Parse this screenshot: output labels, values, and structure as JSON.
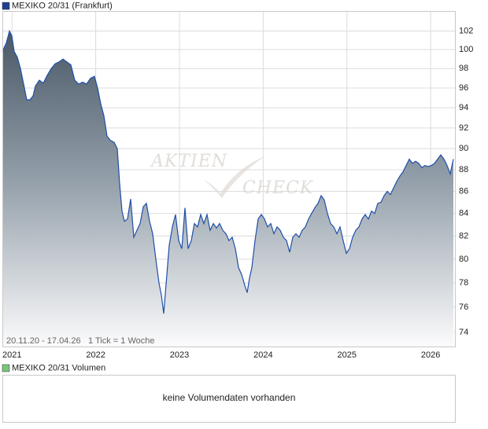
{
  "chart_data": {
    "type": "area",
    "title": "MEXIKO 20/31 (Frankfurt)",
    "color": "#1f4fa8",
    "log": true,
    "grid": true,
    "date_range": "20.11.20 - 17.04.26",
    "tick_note": "1 Tick = 1 Woche",
    "watermark": [
      "AKTIEN",
      "CHECK"
    ],
    "xlim": [
      2020.885,
      2026.29
    ],
    "xticks": [
      2021,
      2022,
      2023,
      2024,
      2025,
      2026
    ],
    "ylim": [
      72.9,
      104.2
    ],
    "yticks": [
      74,
      76,
      78,
      80,
      82,
      84,
      86,
      88,
      90,
      92,
      94,
      96,
      98,
      100,
      102
    ],
    "x": [
      2020.885,
      2020.932,
      2020.97,
      2020.998,
      2021.026,
      2021.064,
      2021.101,
      2021.139,
      2021.176,
      2021.214,
      2021.252,
      2021.28,
      2021.327,
      2021.374,
      2021.421,
      2021.468,
      2021.515,
      2021.562,
      2021.609,
      2021.656,
      2021.703,
      2021.75,
      2021.797,
      2021.844,
      2021.891,
      2021.938,
      2021.985,
      2022.022,
      2022.06,
      2022.098,
      2022.135,
      2022.173,
      2022.22,
      2022.257,
      2022.286,
      2022.314,
      2022.342,
      2022.38,
      2022.417,
      2022.455,
      2022.492,
      2022.53,
      2022.568,
      2022.605,
      2022.643,
      2022.68,
      2022.718,
      2022.756,
      2022.784,
      2022.812,
      2022.84,
      2022.878,
      2022.915,
      2022.953,
      2022.991,
      2023.028,
      2023.066,
      2023.103,
      2023.141,
      2023.179,
      2023.216,
      2023.254,
      2023.291,
      2023.329,
      2023.367,
      2023.404,
      2023.442,
      2023.479,
      2023.517,
      2023.555,
      2023.592,
      2023.63,
      2023.667,
      2023.705,
      2023.743,
      2023.78,
      2023.808,
      2023.837,
      2023.865,
      2023.902,
      2023.94,
      2023.978,
      2024.015,
      2024.053,
      2024.09,
      2024.128,
      2024.166,
      2024.203,
      2024.241,
      2024.278,
      2024.316,
      2024.354,
      2024.391,
      2024.429,
      2024.466,
      2024.504,
      2024.542,
      2024.579,
      2024.617,
      2024.654,
      2024.692,
      2024.73,
      2024.767,
      2024.805,
      2024.842,
      2024.88,
      2024.918,
      2024.955,
      2024.993,
      2025.03,
      2025.068,
      2025.106,
      2025.143,
      2025.181,
      2025.218,
      2025.256,
      2025.294,
      2025.331,
      2025.369,
      2025.406,
      2025.444,
      2025.482,
      2025.519,
      2025.557,
      2025.594,
      2025.632,
      2025.67,
      2025.707,
      2025.745,
      2025.782,
      2025.82,
      2025.858,
      2025.895,
      2025.933,
      2025.97,
      2026.008,
      2026.046,
      2026.083,
      2026.121,
      2026.158,
      2026.196,
      2026.234,
      2026.271
    ],
    "values": [
      99.8,
      100.7,
      102,
      101.5,
      99.8,
      99.2,
      98,
      96.4,
      94.8,
      94.8,
      95.2,
      96.2,
      96.8,
      96.5,
      97.3,
      98,
      98.5,
      98.7,
      99,
      98.7,
      98.4,
      96.8,
      96.4,
      96.6,
      96.4,
      97,
      97.2,
      96,
      94.4,
      93.2,
      91.2,
      90.8,
      90.6,
      90,
      86.7,
      84.2,
      83.3,
      83.5,
      85.3,
      81.9,
      82.5,
      83.1,
      84.6,
      84.9,
      83.3,
      82.2,
      80,
      78,
      77,
      75.5,
      77.9,
      81.2,
      82.8,
      83.9,
      81.6,
      80.9,
      84.5,
      80.9,
      81.6,
      83.1,
      82.8,
      83.9,
      83.1,
      83.9,
      82.5,
      83.1,
      82.7,
      83.1,
      82.5,
      82.2,
      81.6,
      81.9,
      80.9,
      79.3,
      78.7,
      77.8,
      77.2,
      78.4,
      79.3,
      81.6,
      83.5,
      83.9,
      83.5,
      82.8,
      83.1,
      82.2,
      82.8,
      82.5,
      81.9,
      81.6,
      80.6,
      81.9,
      82.2,
      81.9,
      82.5,
      82.8,
      83.5,
      84,
      84.5,
      84.9,
      85.6,
      85.2,
      84,
      83.1,
      82.8,
      82.2,
      82.8,
      81.6,
      80.5,
      80.9,
      81.9,
      82.5,
      82.8,
      83.5,
      83.9,
      83.5,
      84.2,
      84,
      84.9,
      85,
      85.6,
      86,
      85.7,
      86.3,
      86.9,
      87.4,
      87.8,
      88.4,
      89,
      88.6,
      88.8,
      88.6,
      88.2,
      88.4,
      88.3,
      88.4,
      88.6,
      89,
      89.4,
      89,
      88.4,
      87.6,
      89
    ]
  },
  "volume_panel": {
    "title": "MEXIKO 20/31 Volumen",
    "message": "keine Volumendaten vorhanden"
  }
}
